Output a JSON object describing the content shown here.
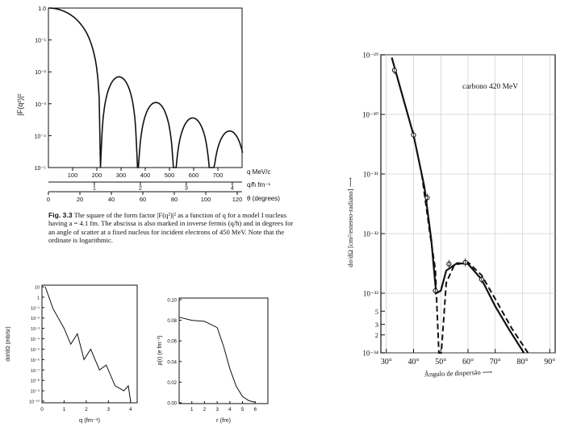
{
  "chart_data": [
    {
      "id": "form-factor",
      "type": "line",
      "title": "",
      "ylabel": "|F(q²)|²",
      "yscale": "log",
      "ylim": [
        1e-05,
        1
      ],
      "ytick_labels": [
        "1.0",
        "10⁻¹",
        "10⁻²",
        "10⁻³",
        "10⁻⁴",
        "10⁻⁵"
      ],
      "xlim_q": [
        0,
        800
      ],
      "axis_rows": [
        {
          "label": "q MeV/c",
          "ticks": [
            "100",
            "200",
            "300",
            "400",
            "500",
            "600",
            "700"
          ]
        },
        {
          "label": "q/ħ fm⁻¹",
          "ticks": [
            "1",
            "2",
            "3",
            "4"
          ]
        },
        {
          "label": "θ (degrees)",
          "ticks": [
            "0",
            "20",
            "40",
            "60",
            "80",
            "100",
            "120"
          ]
        }
      ],
      "zeros_q": [
        215,
        368,
        520,
        672
      ],
      "lobe_peaks": [
        {
          "q": 0,
          "value": 1.0
        },
        {
          "q": 290,
          "value": 0.007
        },
        {
          "q": 442,
          "value": 0.0011
        },
        {
          "q": 595,
          "value": 0.00036
        },
        {
          "q": 745,
          "value": 0.00014
        }
      ]
    },
    {
      "id": "cross-section-q",
      "type": "line",
      "ylabel": "dσ/dΩ (mb/sr)",
      "xlabel": "q (fm⁻¹)",
      "yscale": "log",
      "ytick_labels": [
        "10",
        "1",
        "10⁻¹",
        "10⁻²",
        "10⁻³",
        "10⁻⁴",
        "10⁻⁵",
        "10⁻⁶",
        "10⁻⁷",
        "10⁻⁸",
        "10⁻⁹",
        "10⁻¹⁰"
      ],
      "xtick_labels": [
        "0",
        "1",
        "2",
        "3",
        "4"
      ],
      "points": [
        [
          0.15,
          10
        ],
        [
          0.5,
          0.08
        ],
        [
          1.0,
          0.001
        ],
        [
          1.3,
          3e-05
        ],
        [
          1.6,
          0.0003
        ],
        [
          1.9,
          1e-06
        ],
        [
          2.2,
          1e-05
        ],
        [
          2.6,
          1e-07
        ],
        [
          2.9,
          3e-07
        ],
        [
          3.3,
          3e-09
        ],
        [
          3.7,
          1e-09
        ],
        [
          3.9,
          3e-09
        ],
        [
          4.0,
          1e-10
        ]
      ]
    },
    {
      "id": "charge-density",
      "type": "line",
      "ylabel": "ρ(r) (e fm⁻³)",
      "xlabel": "r (fm)",
      "ylim": [
        0,
        0.1
      ],
      "ytick_labels": [
        "0.00",
        "0.02",
        "0.04",
        "0.06",
        "0.08",
        "0.10"
      ],
      "xtick_labels": [
        "1",
        "2",
        "3",
        "4",
        "5",
        "6"
      ],
      "points": [
        [
          0,
          0.083
        ],
        [
          1,
          0.08
        ],
        [
          2,
          0.079
        ],
        [
          3,
          0.073
        ],
        [
          3.5,
          0.055
        ],
        [
          4,
          0.033
        ],
        [
          4.5,
          0.016
        ],
        [
          5,
          0.006
        ],
        [
          5.5,
          0.002
        ],
        [
          6,
          0.0005
        ]
      ]
    },
    {
      "id": "carbon-cross-section",
      "type": "line",
      "annotation": "carbono  420 MeV",
      "ylabel": "dσ/dΩ [cm²/estereo-radiano] ⟶",
      "xlabel": "Ângulo de dispersão ⟶",
      "yscale": "log",
      "ylim": [
        1e-34,
        1e-29
      ],
      "ytick_labels": [
        "10⁻²⁹",
        "10⁻³⁰",
        "10⁻³¹",
        "10⁻³²",
        "10⁻³³",
        "5",
        "3",
        "2",
        "10⁻³⁴"
      ],
      "xtick_labels": [
        "30°",
        "40°",
        "50°",
        "60°",
        "70°",
        "80°",
        "90°"
      ],
      "measured_points": [
        [
          33,
          5.5e-30
        ],
        [
          40,
          4.5e-31
        ],
        [
          45,
          4e-32
        ],
        [
          48,
          1.1e-33
        ],
        [
          53,
          3.1e-33
        ],
        [
          59,
          3.3e-33
        ],
        [
          65,
          1.7e-33
        ]
      ],
      "series": [
        {
          "style": "solid",
          "points": [
            [
              32,
              9e-30
            ],
            [
              36,
              2e-30
            ],
            [
              40,
              4.5e-31
            ],
            [
              44,
              6e-32
            ],
            [
              46.5,
              8e-33
            ],
            [
              48.3,
              1e-33
            ],
            [
              50,
              1.1e-33
            ],
            [
              52,
              2.4e-33
            ],
            [
              56,
              3.2e-33
            ],
            [
              60,
              3.1e-33
            ],
            [
              65,
              1.7e-33
            ],
            [
              70,
              6e-34
            ],
            [
              75,
              2.5e-34
            ],
            [
              80.5,
              1e-34
            ]
          ]
        },
        {
          "style": "dashed",
          "points": [
            [
              43,
              1e-31
            ],
            [
              46,
              1e-32
            ],
            [
              48,
              2.5e-33
            ],
            [
              49.3,
              1e-34
            ],
            [
              50.2,
              1e-34
            ],
            [
              52,
              1.5e-33
            ],
            [
              55,
              3e-33
            ],
            [
              60,
              3.3e-33
            ],
            [
              65,
              2e-33
            ],
            [
              70,
              8e-34
            ],
            [
              76,
              2.6e-34
            ],
            [
              82,
              1e-34
            ]
          ]
        }
      ]
    }
  ],
  "caption": {
    "label": "Fig. 3.3",
    "text": "The square of the form factor |F(q²)|² as a function of q for a model I nucleus having a = 4.1 fm. The abscissa is also marked in inverse fermis (q/ħ) and in degrees for an angle of scatter at a fixed nucleus for incident electrons of 450 MeV. Note that the ordinate is logarithmic."
  }
}
